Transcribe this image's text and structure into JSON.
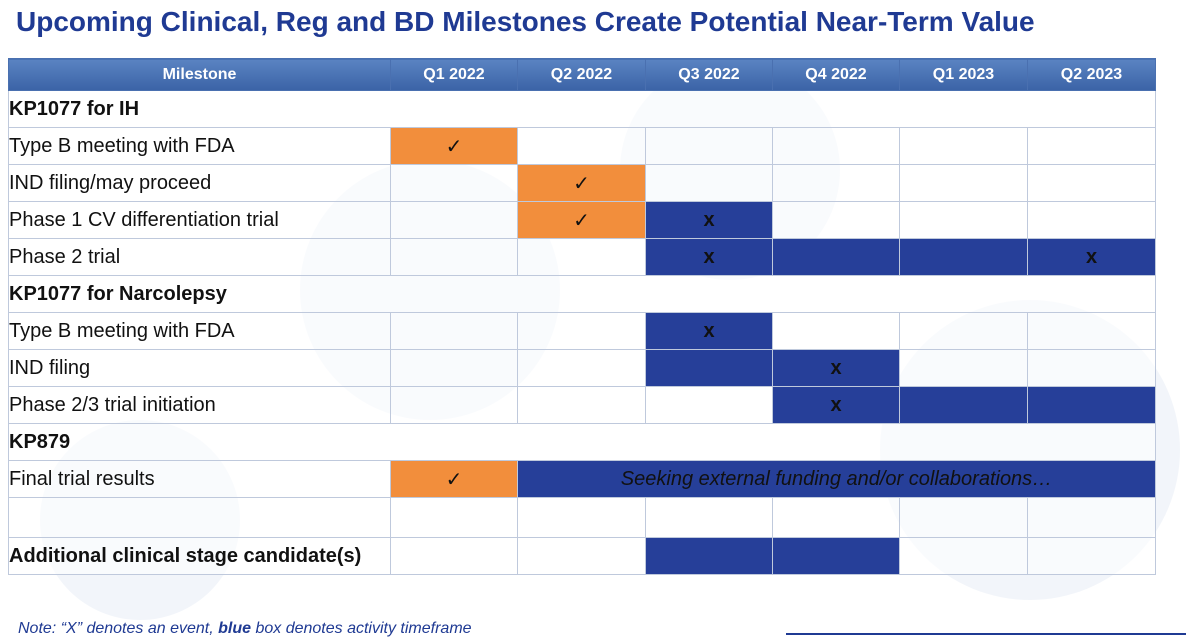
{
  "title": "Upcoming Clinical, Reg and BD Milestones Create Potential Near-Term Value",
  "header": {
    "milestone": "Milestone",
    "columns": [
      "Q1 2022",
      "Q2 2022",
      "Q3 2022",
      "Q4 2022",
      "Q1 2023",
      "Q2 2023"
    ]
  },
  "sections": [
    {
      "name": "KP1077 for IH",
      "rows": [
        {
          "label": "Type B meeting with FDA",
          "cells": [
            "orange-check",
            "",
            "",
            "",
            "",
            ""
          ]
        },
        {
          "label": "IND filing/may proceed",
          "cells": [
            "",
            "orange-check",
            "",
            "",
            "",
            ""
          ]
        },
        {
          "label": "Phase 1 CV differentiation trial",
          "cells": [
            "",
            "orange-check",
            "blue-x",
            "",
            "",
            ""
          ]
        },
        {
          "label": "Phase 2 trial",
          "cells": [
            "",
            "",
            "blue-x",
            "blue",
            "blue",
            "blue-x"
          ]
        }
      ]
    },
    {
      "name": "KP1077 for Narcolepsy",
      "rows": [
        {
          "label": "Type B meeting with FDA",
          "cells": [
            "",
            "",
            "blue-x",
            "",
            "",
            ""
          ]
        },
        {
          "label": "IND filing",
          "cells": [
            "",
            "",
            "blue",
            "blue-x",
            "",
            ""
          ]
        },
        {
          "label": "Phase 2/3 trial initiation",
          "cells": [
            "",
            "",
            "",
            "blue-x",
            "blue",
            "blue"
          ]
        }
      ]
    },
    {
      "name": "KP879",
      "rows": [
        {
          "label": "Final trial results",
          "cells": [
            "orange-check"
          ],
          "funding_text": "Seeking external funding and/or collaborations…"
        }
      ]
    }
  ],
  "additional": {
    "label": "Additional clinical stage candidate(s)",
    "cells": [
      "",
      "",
      "blue",
      "blue",
      "",
      ""
    ]
  },
  "marks": {
    "check": "✓",
    "x": "x"
  },
  "note": {
    "prefix": "Note:  “X” denotes an event, ",
    "bold": "blue",
    "suffix": " box denotes activity timeframe"
  },
  "colors": {
    "title": "#1f3a93",
    "header": "#4a72b5",
    "blue_box": "#263f99",
    "orange_box": "#f28e3c"
  }
}
